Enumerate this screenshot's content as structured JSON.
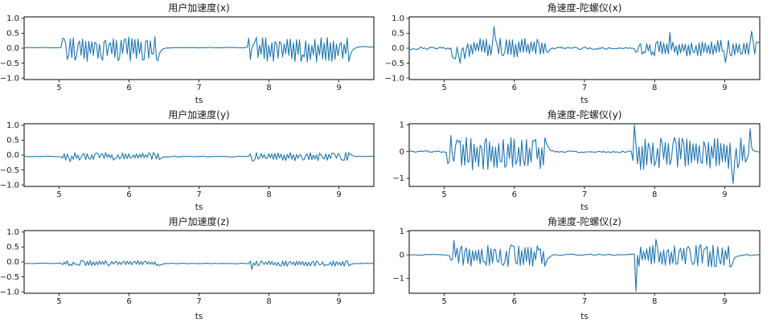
{
  "figure": {
    "background": "#ffffff",
    "line_color": "#1f77b4",
    "axis_color": "#000000",
    "text_color": "#1a1a1a"
  },
  "chart_data": [
    {
      "id": "user-acceleration-x",
      "type": "line",
      "title": "用户加速度(x)",
      "xlabel": "ts",
      "x_range": [
        4.5,
        9.5
      ],
      "x_ticks": [
        5,
        6,
        7,
        8,
        9
      ],
      "x_tick_labels": [
        "5",
        "6",
        "7",
        "8",
        "9"
      ],
      "y_ticks": [
        1.0,
        0.5,
        0.0,
        -0.5,
        -1.0
      ],
      "y_tick_labels": [
        "1.0",
        "0.5",
        "0.0",
        "−0.5",
        "−1.0"
      ],
      "ylim": [
        -1.05,
        1.05
      ],
      "grid": false,
      "series": [
        {
          "name": "用户加速度(x)",
          "baseline": 0.0,
          "sample_step": 0.022,
          "seed": 11,
          "segments": [
            {
              "from": 4.5,
              "to": 5.05,
              "amp": 0.02,
              "bias": 0.02,
              "smooth": true
            },
            {
              "from": 5.05,
              "to": 6.45,
              "amp": 0.42,
              "bias": -0.03
            },
            {
              "from": 6.45,
              "to": 7.7,
              "amp": 0.015,
              "bias": 0.02,
              "smooth": true
            },
            {
              "from": 7.7,
              "to": 9.15,
              "amp": 0.42,
              "bias": -0.05
            },
            {
              "from": 9.15,
              "to": 9.5,
              "amp": 0.02,
              "bias": 0.05,
              "smooth": true
            }
          ],
          "spikes": [
            {
              "t": 5.08,
              "v": 0.32
            },
            {
              "t": 7.73,
              "v": -0.38
            }
          ]
        }
      ]
    },
    {
      "id": "gyroscope-x",
      "type": "line",
      "title": "角速度-陀螺仪(x)",
      "xlabel": "ts",
      "x_range": [
        4.5,
        9.5
      ],
      "x_ticks": [
        5,
        6,
        7,
        8,
        9
      ],
      "x_tick_labels": [
        "5",
        "6",
        "7",
        "8",
        "9"
      ],
      "y_ticks": [
        1.0,
        0.5,
        0.0,
        -0.5,
        -1.0
      ],
      "y_tick_labels": [
        "1.0",
        "0.5",
        "0.0",
        "−0.5",
        "−1.0"
      ],
      "ylim": [
        -1.05,
        1.05
      ],
      "grid": false,
      "series": [
        {
          "name": "角速度-陀螺仪(x)",
          "baseline": 0.0,
          "sample_step": 0.022,
          "seed": 23,
          "segments": [
            {
              "from": 4.5,
              "to": 5.1,
              "amp": 0.09,
              "bias": 0.0,
              "smooth": true
            },
            {
              "from": 5.1,
              "to": 5.32,
              "amp": 0.22,
              "bias": -0.15
            },
            {
              "from": 5.32,
              "to": 6.5,
              "amp": 0.32,
              "bias": 0.02
            },
            {
              "from": 6.5,
              "to": 7.72,
              "amp": 0.08,
              "bias": 0.0,
              "smooth": true
            },
            {
              "from": 7.72,
              "to": 9.5,
              "amp": 0.27,
              "bias": 0.0
            }
          ],
          "spikes": [
            {
              "t": 5.7,
              "v": 0.73
            },
            {
              "t": 5.22,
              "v": -0.5
            },
            {
              "t": 8.22,
              "v": 0.53
            },
            {
              "t": 9.0,
              "v": -0.48
            },
            {
              "t": 9.38,
              "v": 0.57
            }
          ]
        }
      ]
    },
    {
      "id": "user-acceleration-y",
      "type": "line",
      "title": "用户加速度(y)",
      "xlabel": "ts",
      "x_range": [
        4.5,
        9.5
      ],
      "x_ticks": [
        5,
        6,
        7,
        8,
        9
      ],
      "x_tick_labels": [
        "5",
        "6",
        "7",
        "8",
        "9"
      ],
      "y_ticks": [
        1.0,
        0.5,
        0.0,
        -0.5,
        -1.0
      ],
      "y_tick_labels": [
        "1.0",
        "0.5",
        "0.0",
        "−0.5",
        "−1.0"
      ],
      "ylim": [
        -1.05,
        1.05
      ],
      "grid": false,
      "series": [
        {
          "name": "用户加速度(y)",
          "baseline": -0.05,
          "sample_step": 0.022,
          "seed": 37,
          "segments": [
            {
              "from": 4.5,
              "to": 5.05,
              "amp": 0.018,
              "bias": 0.0,
              "smooth": true
            },
            {
              "from": 5.05,
              "to": 6.45,
              "amp": 0.13,
              "bias": 0.01
            },
            {
              "from": 6.45,
              "to": 7.72,
              "amp": 0.022,
              "bias": 0.0,
              "smooth": true
            },
            {
              "from": 7.72,
              "to": 9.15,
              "amp": 0.14,
              "bias": 0.0
            },
            {
              "from": 9.15,
              "to": 9.5,
              "amp": 0.02,
              "bias": 0.0,
              "smooth": true
            }
          ],
          "spikes": [
            {
              "t": 5.15,
              "v": -0.22
            },
            {
              "t": 7.78,
              "v": -0.2
            }
          ]
        }
      ]
    },
    {
      "id": "gyroscope-y",
      "type": "line",
      "title": "角速度-陀螺仪(y)",
      "xlabel": "ts",
      "x_range": [
        4.5,
        9.5
      ],
      "x_ticks": [
        5,
        6,
        7,
        8,
        9
      ],
      "x_tick_labels": [
        "5",
        "6",
        "7",
        "8",
        "9"
      ],
      "y_ticks": [
        1,
        0,
        -1
      ],
      "y_tick_labels": [
        "1",
        "0",
        "−1"
      ],
      "ylim": [
        -1.3,
        1.04
      ],
      "grid": false,
      "series": [
        {
          "name": "角速度-陀螺仪(y)",
          "baseline": 0.0,
          "sample_step": 0.022,
          "seed": 5,
          "segments": [
            {
              "from": 4.5,
              "to": 5.05,
              "amp": 0.08,
              "bias": 0.0,
              "smooth": true
            },
            {
              "from": 5.05,
              "to": 6.45,
              "amp": 0.62,
              "bias": -0.06
            },
            {
              "from": 6.45,
              "to": 7.68,
              "amp": 0.08,
              "bias": 0.0,
              "smooth": true
            },
            {
              "from": 7.68,
              "to": 9.3,
              "amp": 0.62,
              "bias": -0.06
            },
            {
              "from": 9.3,
              "to": 9.5,
              "amp": 0.12,
              "bias": 0.0,
              "smooth": true
            }
          ],
          "spikes": [
            {
              "t": 5.1,
              "v": 0.6
            },
            {
              "t": 7.71,
              "v": 1.0
            },
            {
              "t": 9.12,
              "v": -1.19
            },
            {
              "t": 9.36,
              "v": 0.85
            }
          ]
        }
      ]
    },
    {
      "id": "user-acceleration-z",
      "type": "line",
      "title": "用户加速度(z)",
      "xlabel": "ts",
      "x_range": [
        4.5,
        9.5
      ],
      "x_ticks": [
        5,
        6,
        7,
        8,
        9
      ],
      "x_tick_labels": [
        "5",
        "6",
        "7",
        "8",
        "9"
      ],
      "y_ticks": [
        1.0,
        0.5,
        0.0,
        -0.5,
        -1.0
      ],
      "y_tick_labels": [
        "1.0",
        "0.5",
        "0.0",
        "−0.5",
        "−1.0"
      ],
      "ylim": [
        -1.05,
        1.05
      ],
      "grid": false,
      "series": [
        {
          "name": "用户加速度(z)",
          "baseline": -0.05,
          "sample_step": 0.022,
          "seed": 53,
          "segments": [
            {
              "from": 4.5,
              "to": 5.05,
              "amp": 0.015,
              "bias": 0.0,
              "smooth": true
            },
            {
              "from": 5.05,
              "to": 6.45,
              "amp": 0.09,
              "bias": 0.01
            },
            {
              "from": 6.45,
              "to": 7.72,
              "amp": 0.018,
              "bias": 0.0,
              "smooth": true
            },
            {
              "from": 7.72,
              "to": 9.15,
              "amp": 0.09,
              "bias": 0.0
            },
            {
              "from": 9.15,
              "to": 9.5,
              "amp": 0.02,
              "bias": 0.0,
              "smooth": true
            }
          ],
          "spikes": [
            {
              "t": 7.76,
              "v": -0.25
            }
          ]
        }
      ]
    },
    {
      "id": "gyroscope-z",
      "type": "line",
      "title": "角速度-陀螺仪(z)",
      "xlabel": "ts",
      "x_range": [
        4.5,
        9.5
      ],
      "x_ticks": [
        5,
        6,
        7,
        8,
        9
      ],
      "x_tick_labels": [
        "5",
        "6",
        "7",
        "8",
        "9"
      ],
      "y_ticks": [
        1,
        0,
        -1
      ],
      "y_tick_labels": [
        "1",
        "0",
        "−1"
      ],
      "ylim": [
        -1.63,
        1.03
      ],
      "grid": false,
      "series": [
        {
          "name": "角速度-陀螺仪(z)",
          "baseline": 0.0,
          "sample_step": 0.022,
          "seed": 71,
          "segments": [
            {
              "from": 4.5,
              "to": 5.08,
              "amp": 0.05,
              "bias": 0.0,
              "smooth": true
            },
            {
              "from": 5.08,
              "to": 6.45,
              "amp": 0.48,
              "bias": -0.04
            },
            {
              "from": 6.45,
              "to": 7.75,
              "amp": 0.05,
              "bias": 0.0,
              "smooth": true
            },
            {
              "from": 7.75,
              "to": 9.1,
              "amp": 0.48,
              "bias": -0.04
            },
            {
              "from": 9.1,
              "to": 9.5,
              "amp": 0.06,
              "bias": 0.0,
              "smooth": true
            }
          ],
          "spikes": [
            {
              "t": 5.14,
              "v": 0.6
            },
            {
              "t": 7.73,
              "v": -1.55
            },
            {
              "t": 8.02,
              "v": 0.66
            }
          ]
        }
      ]
    }
  ]
}
